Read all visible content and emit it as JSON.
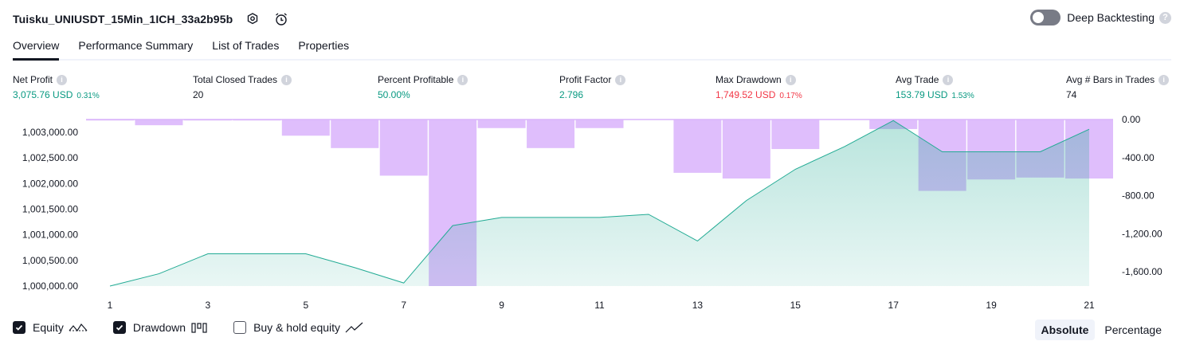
{
  "header": {
    "title": "Tuisku_UNIUSDT_15Min_1ICH_33a2b95b",
    "deep_backtesting_label": "Deep Backtesting",
    "help_glyph": "?"
  },
  "tabs": [
    {
      "label": "Overview",
      "active": true
    },
    {
      "label": "Performance Summary",
      "active": false
    },
    {
      "label": "List of Trades",
      "active": false
    },
    {
      "label": "Properties",
      "active": false
    }
  ],
  "stats": [
    {
      "label": "Net Profit",
      "value": "3,075.76 USD",
      "pct": "0.31%",
      "tone": "pos"
    },
    {
      "label": "Total Closed Trades",
      "value": "20",
      "pct": "",
      "tone": "neutral"
    },
    {
      "label": "Percent Profitable",
      "value": "50.00%",
      "pct": "",
      "tone": "pos"
    },
    {
      "label": "Profit Factor",
      "value": "2.796",
      "pct": "",
      "tone": "pos"
    },
    {
      "label": "Max Drawdown",
      "value": "1,749.52 USD",
      "pct": "0.17%",
      "tone": "neg"
    },
    {
      "label": "Avg Trade",
      "value": "153.79 USD",
      "pct": "1.53%",
      "tone": "pos"
    },
    {
      "label": "Avg # Bars in Trades",
      "value": "74",
      "pct": "",
      "tone": "neutral"
    }
  ],
  "info_glyph": "i",
  "chart_data": {
    "type": "line",
    "x": [
      1,
      2,
      3,
      4,
      5,
      6,
      7,
      8,
      9,
      10,
      11,
      12,
      13,
      14,
      15,
      16,
      17,
      18,
      19,
      20,
      21
    ],
    "x_tick_labels": [
      "1",
      "3",
      "5",
      "7",
      "9",
      "11",
      "13",
      "15",
      "17",
      "19",
      "21"
    ],
    "left_axis": {
      "ylim": [
        1000000,
        1003250
      ],
      "ticks": [
        "1,000,000.00",
        "1,000,500.00",
        "1,001,000.00",
        "1,001,500.00",
        "1,002,000.00",
        "1,002,500.00",
        "1,003,000.00"
      ],
      "tick_values": [
        1000000,
        1000500,
        1001000,
        1001500,
        1002000,
        1002500,
        1003000
      ]
    },
    "right_axis": {
      "ylim": [
        -1750,
        0
      ],
      "ticks": [
        "0.00",
        "-400.00",
        "-800.00",
        "-1,200.00",
        "-1,600.00"
      ],
      "tick_values": [
        0,
        -400,
        -800,
        -1200,
        -1600
      ]
    },
    "series": [
      {
        "name": "Equity",
        "axis": "left",
        "kind": "area",
        "color": "#22ab94",
        "values": [
          1000000,
          1000240,
          1000630,
          1000630,
          1000630,
          1000360,
          1000060,
          1001180,
          1001340,
          1001340,
          1001340,
          1001400,
          1000880,
          1001670,
          1002280,
          1002720,
          1003230,
          1002620,
          1002620,
          1002620,
          1003060
        ]
      },
      {
        "name": "Drawdown",
        "axis": "right",
        "kind": "bar",
        "color": "#d9b3fb",
        "values": [
          -10,
          -60,
          -10,
          -10,
          -170,
          -300,
          -590,
          -1750,
          -90,
          -300,
          -90,
          0,
          -560,
          -620,
          -310,
          0,
          -100,
          -750,
          -630,
          -610,
          -620
        ]
      }
    ],
    "grid": false,
    "colors": {
      "equity_line": "#22ab94",
      "drawdown_fill": "#c58cf7",
      "axis_text": "#131722"
    }
  },
  "legend": [
    {
      "label": "Equity",
      "checked": true,
      "icon": "equity-line-icon"
    },
    {
      "label": "Drawdown",
      "checked": true,
      "icon": "drawdown-bars-icon"
    },
    {
      "label": "Buy & hold equity",
      "checked": false,
      "icon": "buyhold-line-icon"
    }
  ],
  "mode": [
    {
      "label": "Absolute",
      "active": true
    },
    {
      "label": "Percentage",
      "active": false
    }
  ]
}
